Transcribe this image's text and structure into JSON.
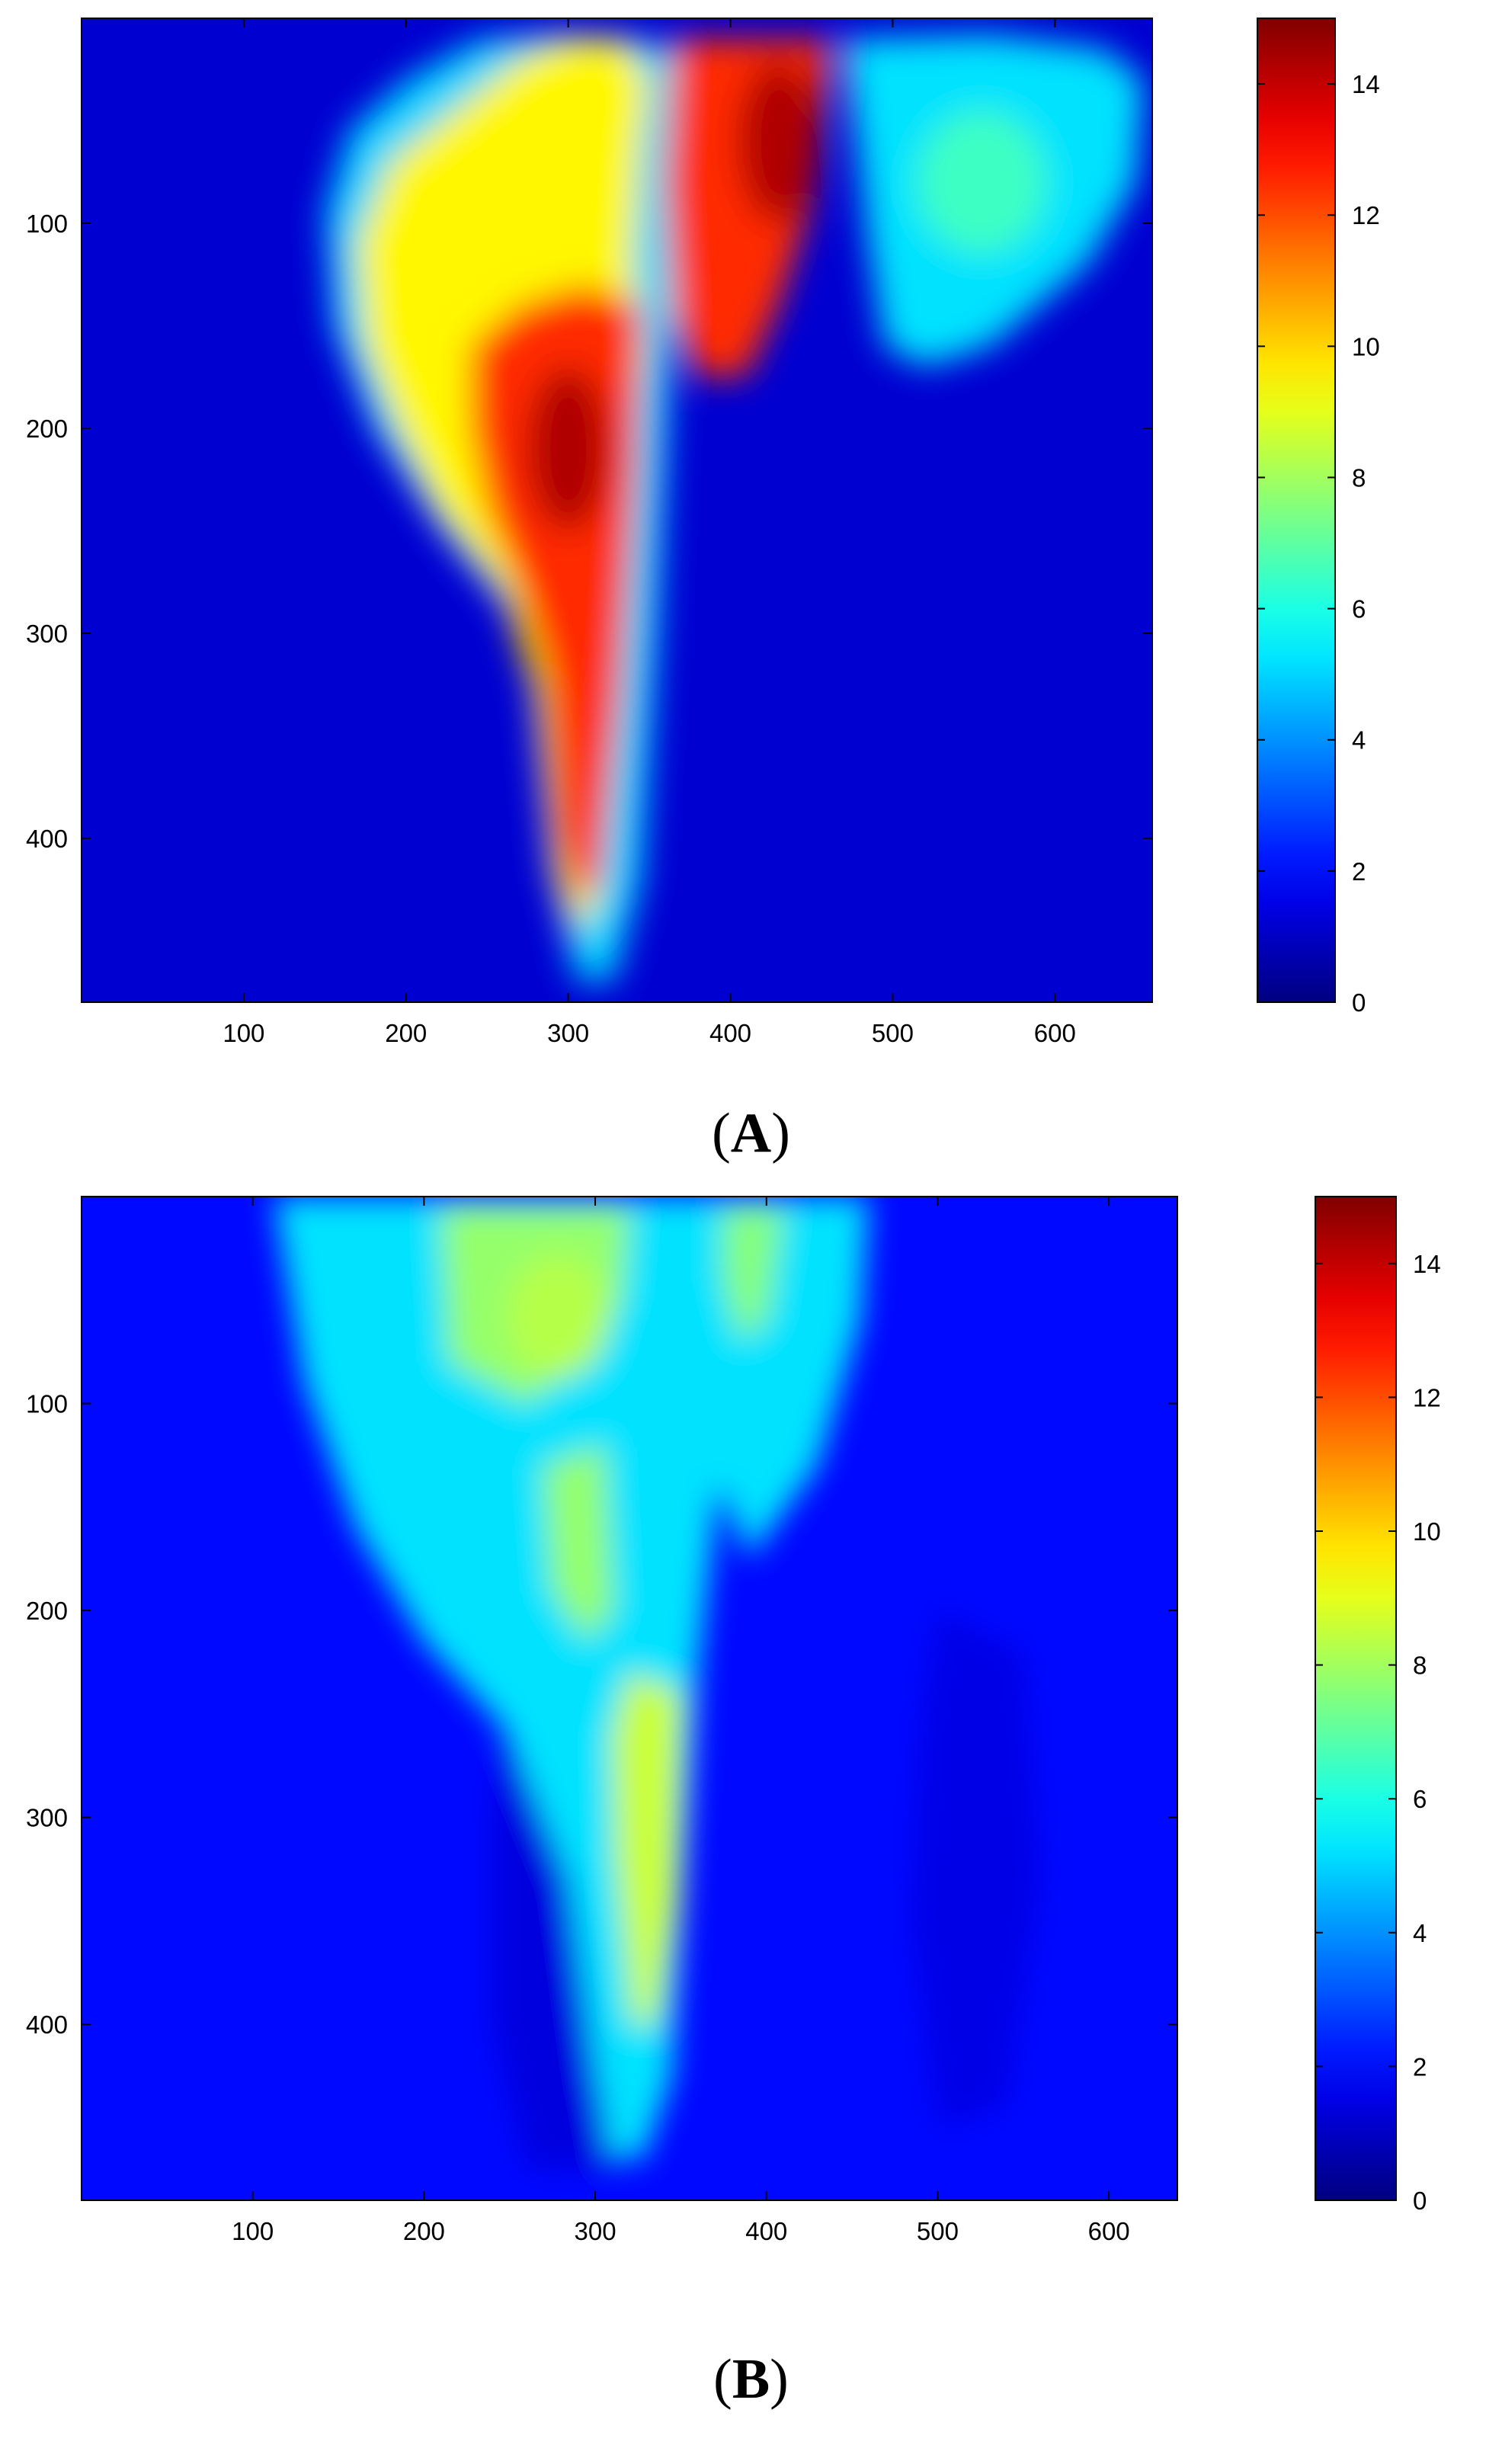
{
  "figure": {
    "panels": [
      {
        "label_open": "(",
        "label_letter": "A",
        "label_close": ")"
      },
      {
        "label_open": "(",
        "label_letter": "B",
        "label_close": ")"
      }
    ]
  },
  "chart_data": [
    {
      "type": "heatmap",
      "panel": "A",
      "title": "",
      "xlabel": "",
      "ylabel": "",
      "x_range": [
        0,
        660
      ],
      "y_range": [
        0,
        480
      ],
      "y_reversed": true,
      "x_ticks": [
        100,
        200,
        300,
        400,
        500,
        600
      ],
      "y_ticks": [
        100,
        200,
        300,
        400
      ],
      "colorbar": {
        "colormap": "jet",
        "range": [
          0,
          15
        ],
        "ticks": [
          0,
          2,
          4,
          6,
          8,
          10,
          12,
          14
        ]
      },
      "background_value": 1.2,
      "regions": [
        {
          "shape": "polygon",
          "value": 5.0,
          "points": [
            [
              150,
              95
            ],
            [
              165,
              55
            ],
            [
              200,
              30
            ],
            [
              245,
              10
            ],
            [
              290,
              8
            ],
            [
              340,
              10
            ],
            [
              390,
              20
            ],
            [
              365,
              135
            ],
            [
              355,
              300
            ],
            [
              345,
              420
            ],
            [
              328,
              470
            ],
            [
              305,
              470
            ],
            [
              288,
              410
            ],
            [
              275,
              300
            ],
            [
              222,
              250
            ],
            [
              180,
              200
            ],
            [
              155,
              150
            ]
          ]
        },
        {
          "shape": "polygon",
          "value": 9.5,
          "points": [
            [
              170,
              110
            ],
            [
              190,
              70
            ],
            [
              230,
              45
            ],
            [
              270,
              20
            ],
            [
              300,
              10
            ],
            [
              335,
              10
            ],
            [
              355,
              40
            ],
            [
              350,
              140
            ],
            [
              340,
              210
            ],
            [
              318,
              430
            ],
            [
              305,
              445
            ],
            [
              292,
              420
            ],
            [
              280,
              330
            ],
            [
              260,
              280
            ],
            [
              220,
              240
            ],
            [
              195,
              200
            ],
            [
              175,
              160
            ]
          ]
        },
        {
          "shape": "polygon",
          "value": 12.5,
          "points": [
            [
              240,
              160
            ],
            [
              270,
              140
            ],
            [
              310,
              130
            ],
            [
              345,
              140
            ],
            [
              342,
              220
            ],
            [
              332,
              330
            ],
            [
              320,
              420
            ],
            [
              305,
              432
            ],
            [
              292,
              400
            ],
            [
              285,
              320
            ],
            [
              270,
              280
            ],
            [
              250,
              240
            ],
            [
              240,
              200
            ]
          ]
        },
        {
          "shape": "ellipse",
          "value": 14.3,
          "cx": 300,
          "cy": 210,
          "rx": 25,
          "ry": 40
        },
        {
          "shape": "polygon",
          "value": 5.0,
          "points": [
            [
              352,
              20
            ],
            [
              358,
              60
            ],
            [
              362,
              140
            ],
            [
              350,
              175
            ],
            [
              340,
              120
            ],
            [
              345,
              60
            ]
          ]
        },
        {
          "shape": "polygon",
          "value": 12.5,
          "points": [
            [
              365,
              10
            ],
            [
              462,
              10
            ],
            [
              450,
              90
            ],
            [
              430,
              140
            ],
            [
              410,
              175
            ],
            [
              380,
              175
            ],
            [
              365,
              145
            ],
            [
              360,
              80
            ]
          ]
        },
        {
          "shape": "ellipse",
          "value": 14.3,
          "cx": 430,
          "cy": 60,
          "rx": 25,
          "ry": 40
        },
        {
          "shape": "polygon",
          "value": 5.2,
          "points": [
            [
              470,
              10
            ],
            [
              560,
              8
            ],
            [
              630,
              15
            ],
            [
              655,
              30
            ],
            [
              650,
              80
            ],
            [
              620,
              120
            ],
            [
              560,
              160
            ],
            [
              520,
              170
            ],
            [
              495,
              160
            ],
            [
              485,
              110
            ],
            [
              478,
              60
            ]
          ]
        },
        {
          "shape": "ellipse",
          "value": 6.5,
          "cx": 555,
          "cy": 80,
          "rx": 40,
          "ry": 35
        }
      ]
    },
    {
      "type": "heatmap",
      "panel": "B",
      "title": "",
      "xlabel": "",
      "ylabel": "",
      "x_range": [
        0,
        640
      ],
      "y_range": [
        0,
        485
      ],
      "y_reversed": true,
      "x_ticks": [
        100,
        200,
        300,
        400,
        500,
        600
      ],
      "y_ticks": [
        100,
        200,
        300,
        400
      ],
      "colorbar": {
        "colormap": "jet",
        "range": [
          0,
          15
        ],
        "ticks": [
          0,
          2,
          4,
          6,
          8,
          10,
          12,
          14
        ]
      },
      "background_value": 2.0,
      "regions": [
        {
          "shape": "polygon",
          "value": 1.4,
          "points": [
            [
              250,
              230
            ],
            [
              300,
              250
            ],
            [
              320,
              300
            ],
            [
              325,
              400
            ],
            [
              310,
              470
            ],
            [
              260,
              470
            ],
            [
              240,
              400
            ],
            [
              240,
              300
            ]
          ]
        },
        {
          "shape": "polygon",
          "value": 1.5,
          "points": [
            [
              500,
              200
            ],
            [
              550,
              220
            ],
            [
              560,
              330
            ],
            [
              540,
              440
            ],
            [
              500,
              450
            ],
            [
              485,
              350
            ],
            [
              490,
              260
            ]
          ]
        },
        {
          "shape": "polygon",
          "value": 5.2,
          "points": [
            [
              112,
              0
            ],
            [
              460,
              0
            ],
            [
              455,
              60
            ],
            [
              430,
              130
            ],
            [
              390,
              175
            ],
            [
              372,
              140
            ],
            [
              360,
              230
            ],
            [
              352,
              330
            ],
            [
              345,
              425
            ],
            [
              328,
              465
            ],
            [
              310,
              465
            ],
            [
              300,
              420
            ],
            [
              285,
              330
            ],
            [
              250,
              260
            ],
            [
              200,
              215
            ],
            [
              160,
              160
            ],
            [
              130,
              90
            ]
          ]
        },
        {
          "shape": "polygon",
          "value": 7.8,
          "points": [
            [
              210,
              5
            ],
            [
              320,
              5
            ],
            [
              315,
              50
            ],
            [
              300,
              75
            ],
            [
              260,
              100
            ],
            [
              215,
              80
            ]
          ]
        },
        {
          "shape": "ellipse",
          "value": 8.3,
          "cx": 278,
          "cy": 58,
          "rx": 30,
          "ry": 30
        },
        {
          "shape": "polygon",
          "value": 7.6,
          "points": [
            [
              375,
              5
            ],
            [
              410,
              5
            ],
            [
              400,
              60
            ],
            [
              385,
              70
            ],
            [
              375,
              40
            ]
          ]
        },
        {
          "shape": "polygon",
          "value": 7.8,
          "points": [
            [
              270,
              130
            ],
            [
              305,
              120
            ],
            [
              310,
              200
            ],
            [
              295,
              215
            ],
            [
              275,
              190
            ]
          ]
        },
        {
          "shape": "polygon",
          "value": 8.6,
          "points": [
            [
              320,
              230
            ],
            [
              350,
              240
            ],
            [
              348,
              340
            ],
            [
              335,
              400
            ],
            [
              322,
              400
            ],
            [
              312,
              320
            ],
            [
              310,
              260
            ]
          ]
        }
      ]
    }
  ]
}
